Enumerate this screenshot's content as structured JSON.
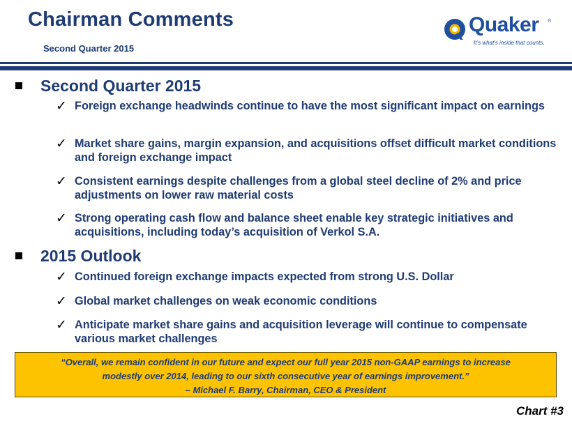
{
  "header": {
    "title": "Chairman Comments",
    "subtitle": "Second Quarter 2015"
  },
  "logo": {
    "word": "Quaker",
    "tagline": "It’s what’s inside that counts.",
    "registered": "®",
    "color": "#1f4f9e",
    "accent": "#f5b800"
  },
  "sections": [
    {
      "heading": "Second Quarter 2015",
      "items": [
        "Foreign exchange headwinds continue to have the most significant impact on earnings",
        "Market share gains, margin expansion, and acquisitions offset difficult market conditions and foreign exchange impact",
        "Consistent earnings despite challenges from a global steel decline of 2% and price adjustments on lower raw material costs",
        "Strong operating cash flow and balance sheet enable key strategic initiatives and acquisitions, including today’s acquisition of Verkol S.A."
      ]
    },
    {
      "heading": "2015 Outlook",
      "items": [
        "Continued foreign exchange impacts expected from strong U.S. Dollar",
        "Global market challenges on weak economic conditions",
        "Anticipate market share gains and acquisition leverage will continue to compensate various market challenges"
      ]
    }
  ],
  "quote": {
    "line1": "“Overall, we remain confident in our future and expect our full year 2015 non-GAAP earnings to increase",
    "line2": "modestly over 2014, leading to our sixth consecutive year of earnings improvement.”",
    "attribution": "– Michael F. Barry, Chairman, CEO & President"
  },
  "footer": {
    "chart_number": "Chart #3"
  },
  "colors": {
    "primary": "#1f3b73",
    "quote_background": "#fdc300"
  },
  "icons": {
    "bullet": "square-bullet-icon",
    "check": "checkmark-icon"
  }
}
